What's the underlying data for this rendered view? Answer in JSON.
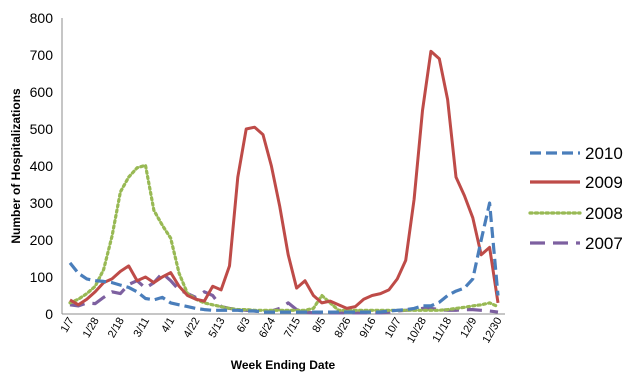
{
  "chart_data": {
    "type": "line",
    "title": "",
    "xlabel": "Week Ending Date",
    "ylabel": "Number of Hospitalizations",
    "ylim": [
      0,
      800
    ],
    "yticks": [
      0,
      100,
      200,
      300,
      400,
      500,
      600,
      700,
      800
    ],
    "x_range": [
      1,
      52
    ],
    "xticks": [
      {
        "week": 1,
        "label": "1/7"
      },
      {
        "week": 4,
        "label": "1/28"
      },
      {
        "week": 7,
        "label": "2/18"
      },
      {
        "week": 10,
        "label": "3/11"
      },
      {
        "week": 13,
        "label": "4/1"
      },
      {
        "week": 16,
        "label": "4/22"
      },
      {
        "week": 19,
        "label": "5/13"
      },
      {
        "week": 22,
        "label": "6/3"
      },
      {
        "week": 25,
        "label": "6/24"
      },
      {
        "week": 28,
        "label": "7/15"
      },
      {
        "week": 31,
        "label": "8/5"
      },
      {
        "week": 34,
        "label": "8/26"
      },
      {
        "week": 37,
        "label": "9/16"
      },
      {
        "week": 40,
        "label": "10/7"
      },
      {
        "week": 43,
        "label": "10/28"
      },
      {
        "week": 46,
        "label": "11/18"
      },
      {
        "week": 49,
        "label": "12/9"
      },
      {
        "week": 52,
        "label": "12/30"
      }
    ],
    "grid": false,
    "legend_position": "right",
    "series": [
      {
        "name": "2010",
        "color": "#4a7ebb",
        "dash": "dashed",
        "x": [
          1,
          2,
          3,
          4,
          5,
          6,
          7,
          8,
          9,
          10,
          11,
          12,
          13,
          14,
          15,
          16,
          17,
          18,
          19,
          20,
          21,
          22,
          23,
          24,
          25,
          26,
          27,
          28,
          29,
          30,
          31,
          32,
          33,
          34,
          35,
          36,
          37,
          38,
          39,
          40,
          41,
          42,
          43,
          44,
          45,
          46,
          47,
          48,
          49,
          50,
          51,
          52
        ],
        "values": [
          138,
          110,
          95,
          90,
          88,
          85,
          78,
          72,
          60,
          42,
          38,
          45,
          30,
          25,
          20,
          15,
          12,
          10,
          10,
          10,
          10,
          8,
          8,
          5,
          5,
          5,
          5,
          5,
          5,
          5,
          5,
          5,
          5,
          5,
          5,
          5,
          5,
          5,
          8,
          10,
          12,
          15,
          22,
          22,
          32,
          50,
          62,
          70,
          95,
          200,
          300,
          50
        ]
      },
      {
        "name": "2009",
        "color": "#be4b48",
        "dash": "solid",
        "x": [
          1,
          2,
          3,
          4,
          5,
          6,
          7,
          8,
          9,
          10,
          11,
          12,
          13,
          14,
          15,
          16,
          17,
          18,
          19,
          20,
          21,
          22,
          23,
          24,
          25,
          26,
          27,
          28,
          29,
          30,
          31,
          32,
          33,
          34,
          35,
          36,
          37,
          38,
          39,
          40,
          41,
          42,
          43,
          44,
          45,
          46,
          47,
          48,
          49,
          50,
          51,
          52
        ],
        "values": [
          38,
          25,
          40,
          60,
          85,
          95,
          115,
          130,
          90,
          100,
          85,
          100,
          112,
          75,
          50,
          40,
          35,
          75,
          65,
          130,
          370,
          500,
          505,
          485,
          400,
          290,
          160,
          70,
          90,
          50,
          30,
          35,
          25,
          15,
          20,
          40,
          50,
          55,
          65,
          95,
          145,
          310,
          550,
          710,
          690,
          580,
          370,
          320,
          260,
          160,
          180,
          30
        ]
      },
      {
        "name": "2008",
        "color": "#98b954",
        "dash": "dotted",
        "x": [
          1,
          2,
          3,
          4,
          5,
          6,
          7,
          8,
          9,
          10,
          11,
          12,
          13,
          14,
          15,
          16,
          17,
          18,
          19,
          20,
          21,
          22,
          23,
          24,
          25,
          26,
          27,
          28,
          29,
          30,
          31,
          32,
          33,
          34,
          35,
          36,
          37,
          38,
          39,
          40,
          41,
          42,
          43,
          44,
          45,
          46,
          47,
          48,
          49,
          50,
          51,
          52
        ],
        "values": [
          30,
          40,
          55,
          75,
          120,
          210,
          330,
          370,
          395,
          402,
          280,
          240,
          205,
          110,
          55,
          40,
          30,
          25,
          20,
          15,
          12,
          12,
          10,
          10,
          10,
          10,
          10,
          10,
          10,
          15,
          50,
          30,
          10,
          10,
          10,
          10,
          10,
          10,
          10,
          10,
          10,
          10,
          10,
          10,
          10,
          12,
          15,
          18,
          22,
          25,
          30,
          20
        ]
      },
      {
        "name": "2007",
        "color": "#7d60a0",
        "dash": "longdash",
        "x": [
          1,
          2,
          3,
          4,
          5,
          6,
          7,
          8,
          9,
          10,
          11,
          12,
          13,
          14,
          15,
          16,
          17,
          18,
          19,
          20,
          21,
          22,
          23,
          24,
          25,
          26,
          27,
          28,
          29,
          30,
          31,
          32,
          33,
          34,
          35,
          36,
          37,
          38,
          39,
          40,
          41,
          42,
          43,
          44,
          45,
          46,
          47,
          48,
          49,
          50,
          51,
          52
        ],
        "values": [
          25,
          22,
          30,
          28,
          45,
          60,
          55,
          80,
          90,
          70,
          85,
          110,
          90,
          65,
          55,
          45,
          60,
          50,
          20,
          15,
          12,
          10,
          8,
          5,
          8,
          15,
          30,
          12,
          5,
          3,
          3,
          3,
          3,
          3,
          3,
          3,
          3,
          3,
          5,
          8,
          10,
          12,
          15,
          15,
          12,
          10,
          10,
          12,
          12,
          10,
          8,
          5
        ]
      }
    ]
  }
}
